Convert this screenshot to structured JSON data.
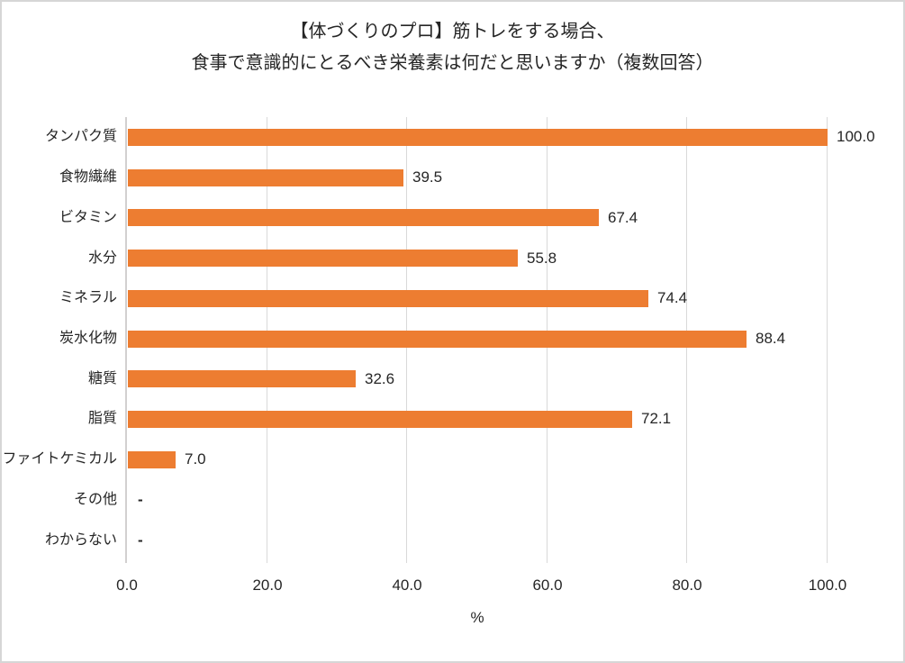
{
  "chart_data": {
    "type": "bar",
    "orientation": "horizontal",
    "title": "【体づくりのプロ】筋トレをする場合、食事で意識的にとるべき栄養素は何だと思いますか（複数回答）",
    "title_lines": {
      "0": "【体づくりのプロ】筋トレをする場合、",
      "1": "食事で意識的にとるべき栄養素は何だと思いますか（複数回答）"
    },
    "categories": [
      "タンパク質",
      "食物繊維",
      "ビタミン",
      "水分",
      "ミネラル",
      "炭水化物",
      "糖質",
      "脂質",
      "ファイトケミカル",
      "その他",
      "わからない"
    ],
    "values": [
      100.0,
      39.5,
      67.4,
      55.8,
      74.4,
      88.4,
      32.6,
      72.1,
      7.0,
      null,
      null
    ],
    "value_labels": [
      "100.0",
      "39.5",
      "67.4",
      "55.8",
      "74.4",
      "88.4",
      "32.6",
      "72.1",
      "7.0",
      "-",
      "-"
    ],
    "xlabel": "%",
    "x_ticks": [
      "0.0",
      "20.0",
      "40.0",
      "60.0",
      "80.0",
      "100.0"
    ],
    "x_tick_values": [
      0,
      20,
      40,
      60,
      80,
      100
    ],
    "xlim": [
      0,
      100
    ],
    "grid": true,
    "legend": false,
    "colors": {
      "bar": "#ED7D31",
      "gridline": "#D9D9D9",
      "axis_line": "#D2D0D0",
      "text": "#262626",
      "frame_border": "#D6D6D6",
      "background": "#FFFFFF"
    }
  }
}
